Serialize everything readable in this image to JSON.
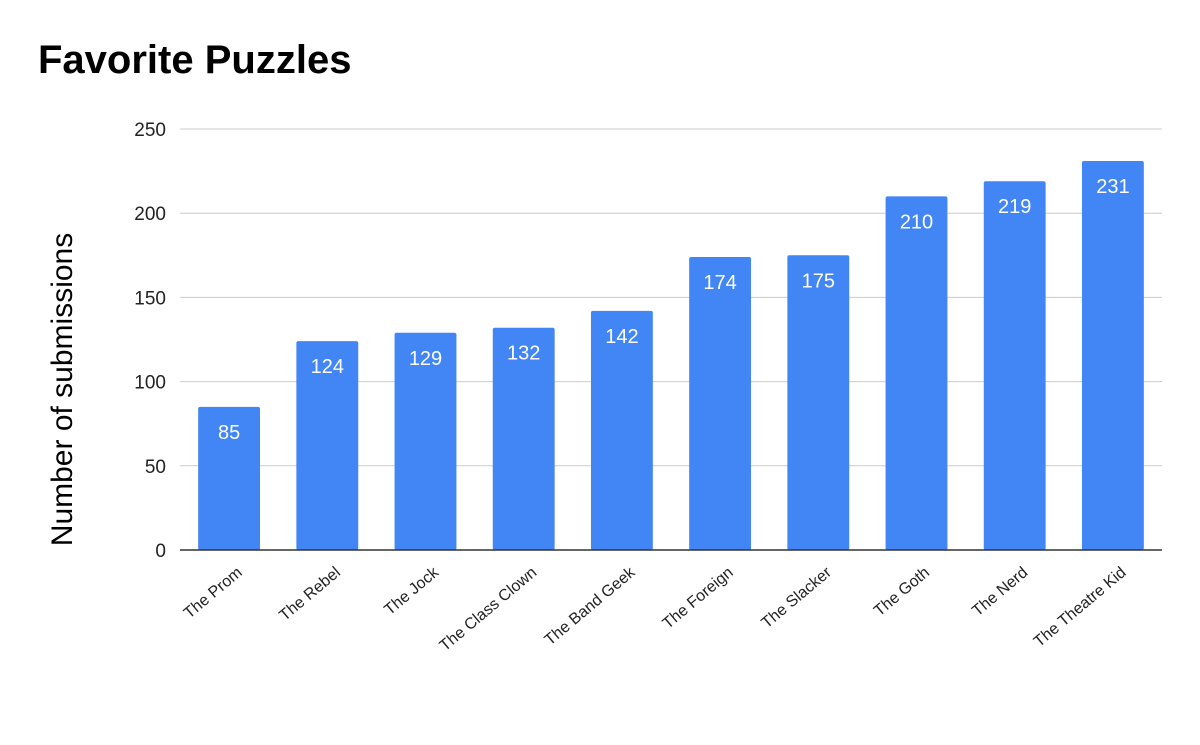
{
  "chart_data": {
    "type": "bar",
    "title": "Favorite Puzzles",
    "xlabel": "",
    "ylabel": "Number of submissions",
    "categories": [
      "The Prom",
      "The Rebel",
      "The Jock",
      "The Class Clown",
      "The Band Geek",
      "The Foreign",
      "The Slacker",
      "The Goth",
      "The Nerd",
      "The Theatre Kid"
    ],
    "values": [
      85,
      124,
      129,
      132,
      142,
      174,
      175,
      210,
      219,
      231
    ],
    "ylim": [
      0,
      250
    ],
    "yticks": [
      0,
      50,
      100,
      150,
      200,
      250
    ],
    "grid": true,
    "legend": "none",
    "colors": {
      "bar": "#4285f4",
      "grid": "#cccccc",
      "axis": "#333333"
    }
  }
}
